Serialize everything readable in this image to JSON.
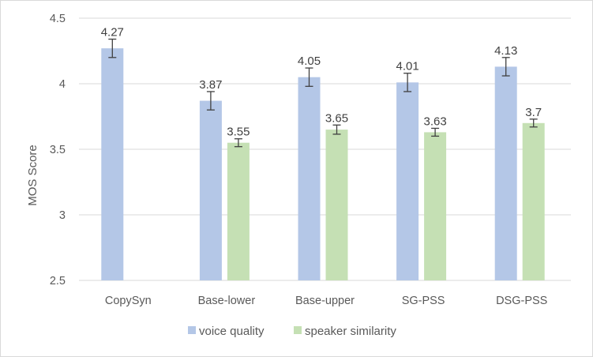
{
  "chart_data": {
    "type": "bar",
    "categories": [
      "CopySyn",
      "Base-lower",
      "Base-upper",
      "SG-PSS",
      "DSG-PSS"
    ],
    "series": [
      {
        "name": "voice quality",
        "color": "#b4c7e7",
        "values": [
          4.27,
          3.87,
          4.05,
          4.01,
          4.13
        ],
        "labels": [
          "4.27",
          "3.87",
          "4.05",
          "4.01",
          "4.13"
        ],
        "error": [
          0.07,
          0.07,
          0.07,
          0.07,
          0.07
        ]
      },
      {
        "name": "speaker similarity",
        "color": "#c5e0b4",
        "values": [
          null,
          3.55,
          3.65,
          3.63,
          3.7
        ],
        "labels": [
          null,
          "3.55",
          "3.65",
          "3.63",
          "3.7"
        ],
        "error": [
          null,
          0.03,
          0.035,
          0.03,
          0.03
        ]
      }
    ],
    "ylabel": "MOS Score",
    "xlabel": "",
    "ylim": [
      2.5,
      4.5
    ],
    "yticks": [
      "2.5",
      "3",
      "3.5",
      "4",
      "4.5"
    ],
    "grid": true,
    "legend_position": "bottom"
  }
}
